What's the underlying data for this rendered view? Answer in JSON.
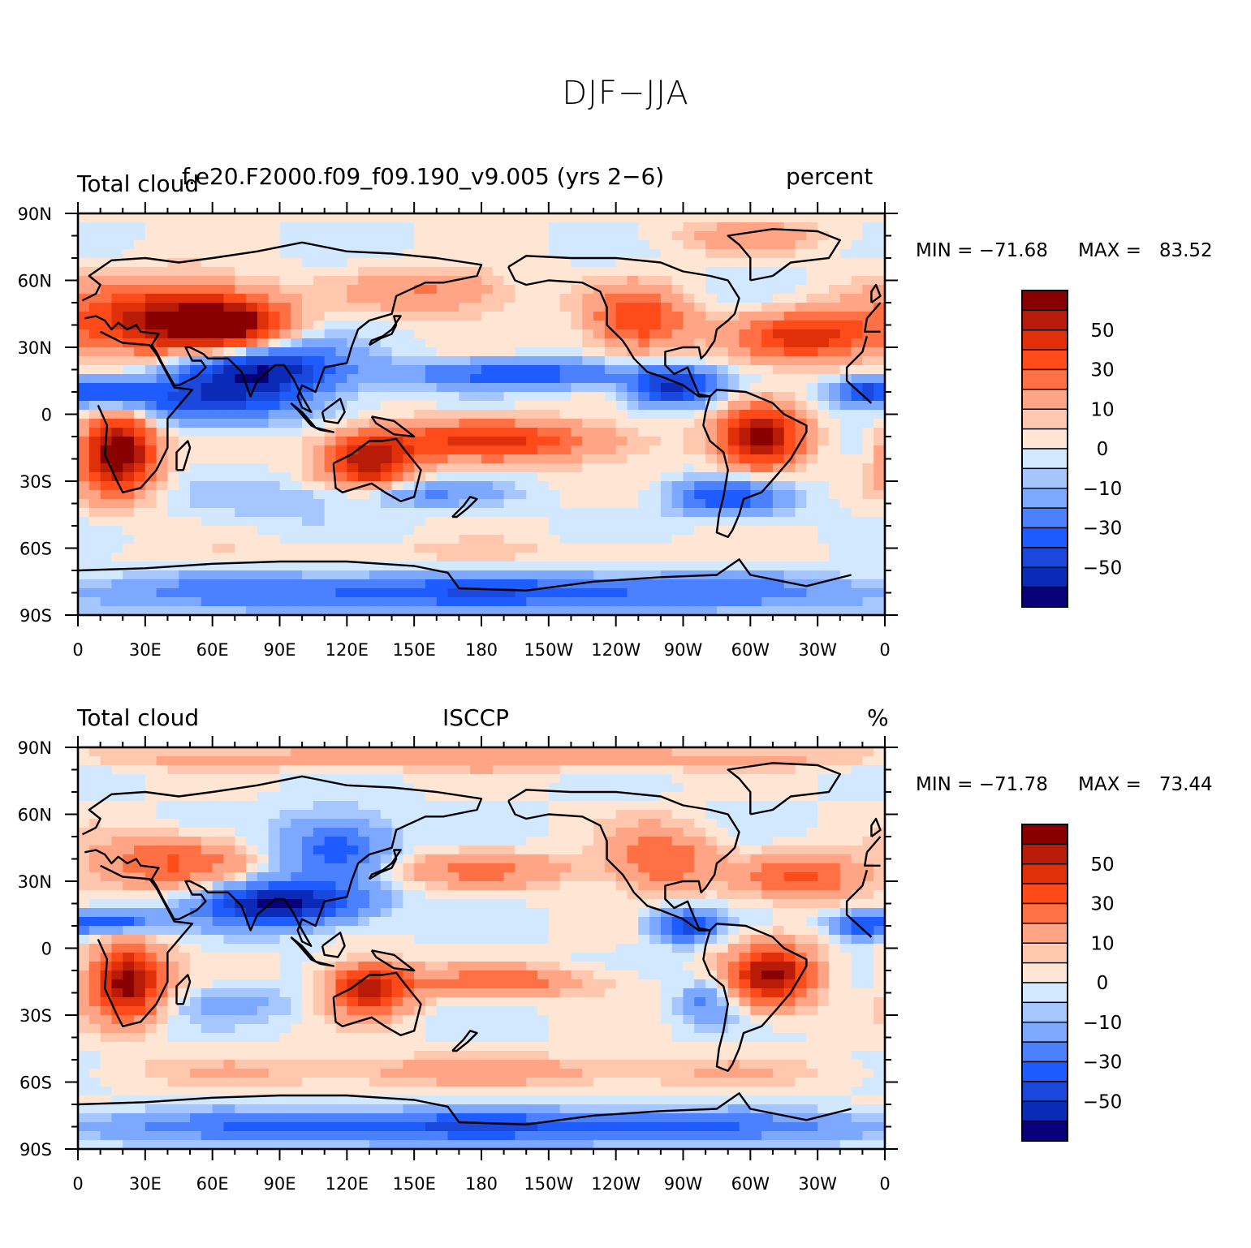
{
  "title": "DJF−JJA",
  "colors": {
    "scale": [
      "#08007a",
      "#0c2ab8",
      "#1a48dc",
      "#1e5cff",
      "#4b80ff",
      "#7da8ff",
      "#a6c6ff",
      "#d2e8ff",
      "#ffe6d4",
      "#ffc8ae",
      "#ffa484",
      "#ff7044",
      "#ff4a1a",
      "#e0300a",
      "#b81c08",
      "#880000"
    ],
    "coast": "#000000"
  },
  "chart_data": [
    {
      "type": "heatmap",
      "title_left": "Total cloud",
      "title_center": "f.e20.F2000.f09_f09.190_v9.005 (yrs 2−6)",
      "title_right": "percent",
      "min_label": "MIN = −71.68",
      "max_label": "MAX =   83.52",
      "ylabels": [
        "90N",
        "60N",
        "30N",
        "0",
        "30S",
        "60S",
        "90S"
      ],
      "xlabels": [
        "0",
        "30E",
        "60E",
        "90E",
        "120E",
        "150E",
        "180",
        "150W",
        "120W",
        "90W",
        "60W",
        "30W",
        "0"
      ],
      "colorbar_labels": [
        "50",
        "30",
        "10",
        "0",
        "−10",
        "−30",
        "−50"
      ],
      "levels": [
        -70,
        -60,
        -50,
        -40,
        -30,
        -20,
        -10,
        -5,
        0,
        5,
        10,
        20,
        30,
        40,
        50,
        60,
        70
      ],
      "blobs": [
        {
          "lon": 18,
          "lat": -17,
          "v": 75,
          "rlon": 16,
          "rlat": 18
        },
        {
          "lon": 40,
          "lat": 42,
          "v": 62,
          "rlon": 40,
          "rlat": 16
        },
        {
          "lon": 70,
          "lat": 40,
          "v": 45,
          "rlon": 22,
          "rlat": 12
        },
        {
          "lon": 130,
          "lat": -22,
          "v": 55,
          "rlon": 20,
          "rlat": 12
        },
        {
          "lon": 185,
          "lat": -12,
          "v": 42,
          "rlon": 55,
          "rlat": 9
        },
        {
          "lon": 305,
          "lat": -10,
          "v": 60,
          "rlon": 18,
          "rlat": 15
        },
        {
          "lon": 325,
          "lat": 35,
          "v": 45,
          "rlon": 30,
          "rlat": 11
        },
        {
          "lon": 250,
          "lat": 42,
          "v": 40,
          "rlon": 22,
          "rlat": 14
        },
        {
          "lon": 160,
          "lat": 55,
          "v": 22,
          "rlon": 35,
          "rlat": 10
        },
        {
          "lon": 90,
          "lat": -40,
          "v": -8,
          "rlon": 40,
          "rlat": 10
        },
        {
          "lon": 80,
          "lat": 20,
          "v": -62,
          "rlon": 38,
          "rlat": 12
        },
        {
          "lon": 55,
          "lat": 5,
          "v": -35,
          "rlon": 45,
          "rlat": 10
        },
        {
          "lon": 15,
          "lat": 10,
          "v": -30,
          "rlon": 20,
          "rlat": 6
        },
        {
          "lon": 200,
          "lat": 18,
          "v": -38,
          "rlon": 55,
          "rlat": 6
        },
        {
          "lon": 265,
          "lat": 12,
          "v": -55,
          "rlon": 18,
          "rlat": 8
        },
        {
          "lon": 350,
          "lat": 10,
          "v": -40,
          "rlon": 14,
          "rlat": 6
        },
        {
          "lon": 290,
          "lat": -37,
          "v": -38,
          "rlon": 25,
          "rlat": 8
        },
        {
          "lon": 150,
          "lat": -35,
          "v": -22,
          "rlon": 35,
          "rlat": 6
        },
        {
          "lon": 180,
          "lat": -80,
          "v": -38,
          "rlon": 180,
          "rlat": 8
        },
        {
          "lon": 170,
          "lat": -62,
          "v": 6,
          "rlon": 120,
          "rlat": 5
        },
        {
          "lon": 300,
          "lat": 80,
          "v": 12,
          "rlon": 40,
          "rlat": 8
        }
      ]
    },
    {
      "type": "heatmap",
      "title_left": "Total cloud",
      "title_center": "ISCCP",
      "title_right": "%",
      "min_label": "MIN = −71.78",
      "max_label": "MAX =   73.44",
      "ylabels": [
        "90N",
        "60N",
        "30N",
        "0",
        "30S",
        "60S",
        "90S"
      ],
      "xlabels": [
        "0",
        "30E",
        "60E",
        "90E",
        "120E",
        "150E",
        "180",
        "150W",
        "120W",
        "90W",
        "60W",
        "30W",
        "0"
      ],
      "colorbar_labels": [
        "50",
        "30",
        "10",
        "0",
        "−10",
        "−30",
        "−50"
      ],
      "levels": [
        -70,
        -60,
        -50,
        -40,
        -30,
        -20,
        -10,
        -5,
        0,
        5,
        10,
        20,
        30,
        40,
        50,
        60,
        70
      ],
      "blobs": [
        {
          "lon": 22,
          "lat": -15,
          "v": 68,
          "rlon": 16,
          "rlat": 16
        },
        {
          "lon": 40,
          "lat": 38,
          "v": 30,
          "rlon": 35,
          "rlat": 12
        },
        {
          "lon": 130,
          "lat": -18,
          "v": 55,
          "rlon": 18,
          "rlat": 11
        },
        {
          "lon": 310,
          "lat": -12,
          "v": 62,
          "rlon": 18,
          "rlat": 14
        },
        {
          "lon": 325,
          "lat": 32,
          "v": 30,
          "rlon": 28,
          "rlat": 10
        },
        {
          "lon": 190,
          "lat": -15,
          "v": 25,
          "rlon": 45,
          "rlat": 7
        },
        {
          "lon": 180,
          "lat": 35,
          "v": 20,
          "rlon": 50,
          "rlat": 8
        },
        {
          "lon": 260,
          "lat": 40,
          "v": 30,
          "rlon": 22,
          "rlat": 14
        },
        {
          "lon": 180,
          "lat": -55,
          "v": 14,
          "rlon": 150,
          "rlat": 7
        },
        {
          "lon": 180,
          "lat": 85,
          "v": 18,
          "rlon": 180,
          "rlat": 5
        },
        {
          "lon": 90,
          "lat": 20,
          "v": -65,
          "rlon": 35,
          "rlat": 10
        },
        {
          "lon": 115,
          "lat": 45,
          "v": -35,
          "rlon": 25,
          "rlat": 15
        },
        {
          "lon": 15,
          "lat": 12,
          "v": -40,
          "rlon": 20,
          "rlat": 5
        },
        {
          "lon": 270,
          "lat": 10,
          "v": -45,
          "rlon": 14,
          "rlat": 7
        },
        {
          "lon": 350,
          "lat": 10,
          "v": -35,
          "rlon": 14,
          "rlat": 6
        },
        {
          "lon": 280,
          "lat": -25,
          "v": -22,
          "rlon": 12,
          "rlat": 10
        },
        {
          "lon": 180,
          "lat": -80,
          "v": -40,
          "rlon": 180,
          "rlat": 7
        },
        {
          "lon": 70,
          "lat": -25,
          "v": -12,
          "rlon": 30,
          "rlat": 8
        }
      ]
    }
  ]
}
